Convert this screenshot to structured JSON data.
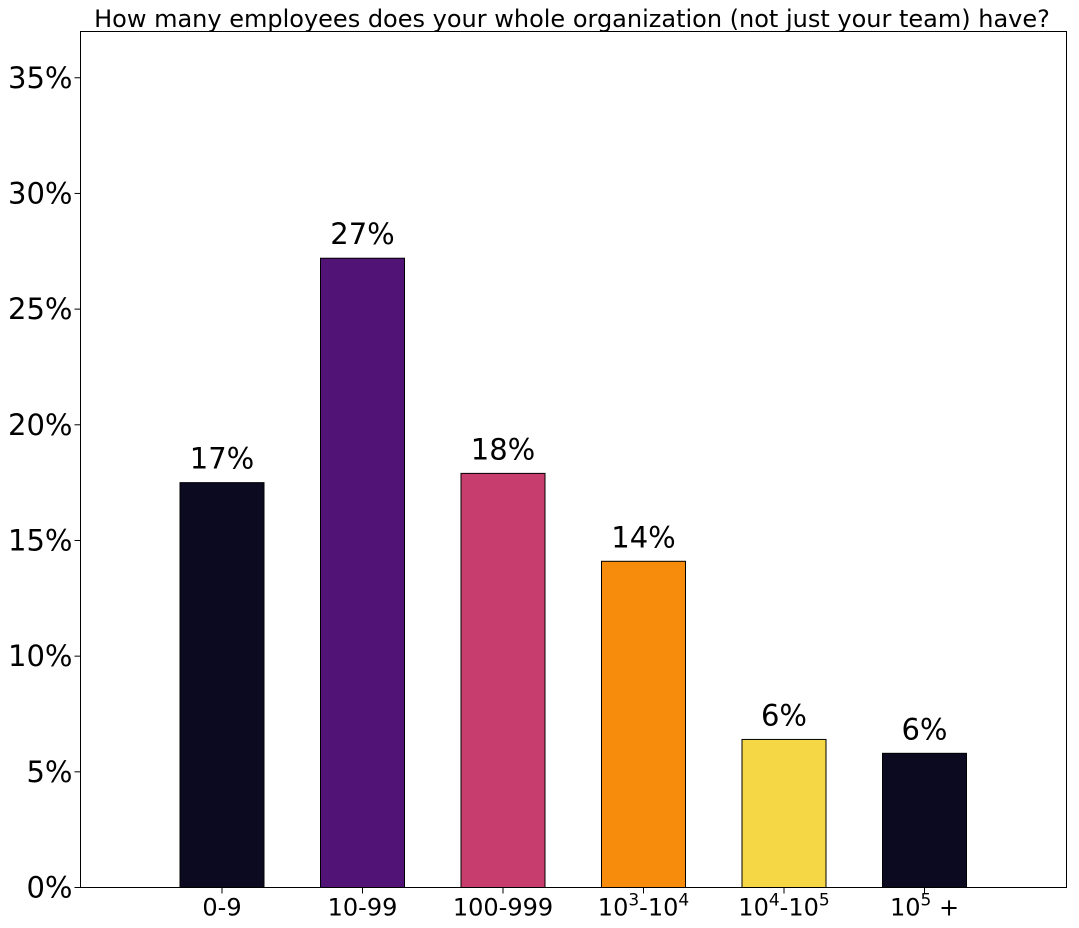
{
  "chart_data": {
    "type": "bar",
    "title": "How many employees does your whole organization (not just your team) have?",
    "xlabel": "",
    "ylabel": "",
    "ylim": [
      0,
      37
    ],
    "yticks": [
      0,
      5,
      10,
      15,
      20,
      25,
      30,
      35
    ],
    "ytick_labels": [
      "0%",
      "5%",
      "10%",
      "15%",
      "20%",
      "25%",
      "30%",
      "35%"
    ],
    "categories": [
      {
        "base": "0-9",
        "parts": [
          {
            "t": "0-9",
            "sup": false
          }
        ]
      },
      {
        "base": "10-99",
        "parts": [
          {
            "t": "10-99",
            "sup": false
          }
        ]
      },
      {
        "base": "100-999",
        "parts": [
          {
            "t": "100-999",
            "sup": false
          }
        ]
      },
      {
        "base": "10^3-10^4",
        "parts": [
          {
            "t": "10",
            "sup": false
          },
          {
            "t": "3",
            "sup": true
          },
          {
            "t": "-10",
            "sup": false
          },
          {
            "t": "4",
            "sup": true
          }
        ]
      },
      {
        "base": "10^4-10^5",
        "parts": [
          {
            "t": "10",
            "sup": false
          },
          {
            "t": "4",
            "sup": true
          },
          {
            "t": "-10",
            "sup": false
          },
          {
            "t": "5",
            "sup": true
          }
        ]
      },
      {
        "base": "10^5 +",
        "parts": [
          {
            "t": "10",
            "sup": false
          },
          {
            "t": "5",
            "sup": true
          },
          {
            "t": " +",
            "sup": false
          }
        ]
      }
    ],
    "values": [
      17.5,
      27.2,
      17.9,
      14.1,
      6.4,
      5.8
    ],
    "data_labels": [
      "17%",
      "27%",
      "18%",
      "14%",
      "6%",
      "6%"
    ],
    "colors": [
      "#0b0a21",
      "#521376",
      "#c73e6e",
      "#f78b0c",
      "#f5d746",
      "#0b0a21"
    ],
    "grid": false,
    "legend": "none"
  }
}
